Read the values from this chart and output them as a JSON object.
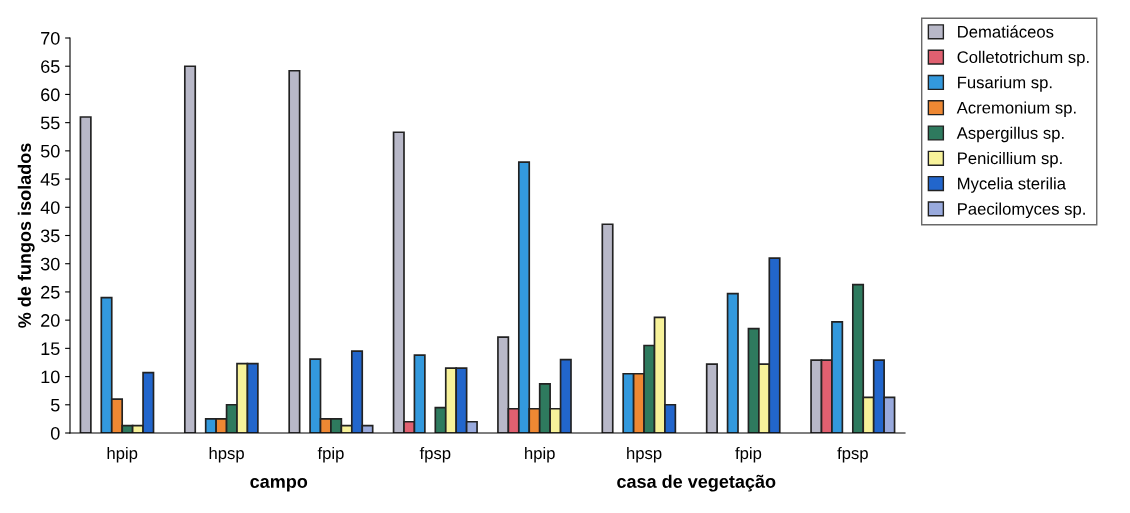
{
  "chart_data": {
    "type": "bar",
    "ylabel": "% de fungos isolados",
    "categories": [
      "hpip",
      "hpsp",
      "fpip",
      "fpsp",
      "hpip",
      "hpsp",
      "fpip",
      "fpsp"
    ],
    "series": [
      {
        "name": "Dematiáceos",
        "color": "#b8b8c8",
        "values": [
          56,
          65,
          64.2,
          53.3,
          17,
          37,
          12.2,
          12.9
        ]
      },
      {
        "name": "Colletotrichum sp.",
        "color": "#e06070",
        "values": [
          null,
          null,
          null,
          2,
          4.3,
          null,
          null,
          12.9
        ]
      },
      {
        "name": "Fusarium sp.",
        "color": "#3399dd",
        "values": [
          24,
          2.5,
          13.1,
          13.8,
          48,
          10.5,
          24.7,
          19.7
        ]
      },
      {
        "name": "Acremonium sp.",
        "color": "#ee8833",
        "values": [
          6,
          2.5,
          2.5,
          null,
          4.3,
          10.5,
          null,
          null
        ]
      },
      {
        "name": "Aspergillus sp.",
        "color": "#2e7a5e",
        "values": [
          1.3,
          5,
          2.5,
          4.5,
          8.7,
          15.5,
          18.5,
          26.3
        ]
      },
      {
        "name": "Penicillium sp.",
        "color": "#f7f29a",
        "values": [
          1.3,
          12.3,
          1.3,
          11.5,
          4.3,
          20.5,
          12.2,
          6.3
        ]
      },
      {
        "name": "Mycelia sterilia",
        "color": "#2266cc",
        "values": [
          10.7,
          12.3,
          14.5,
          11.5,
          13,
          5,
          31,
          12.9
        ]
      },
      {
        "name": "Paecilomyces sp.",
        "color": "#99aadd",
        "values": [
          null,
          null,
          1.3,
          2,
          null,
          null,
          null,
          6.3
        ]
      }
    ],
    "ylim": [
      0,
      70
    ],
    "yticks": [
      0,
      5,
      10,
      15,
      20,
      25,
      30,
      35,
      40,
      45,
      50,
      55,
      60,
      65,
      70
    ],
    "annotations": [
      "campo",
      "casa de vegetação"
    ],
    "legend": "right",
    "grid": false
  }
}
